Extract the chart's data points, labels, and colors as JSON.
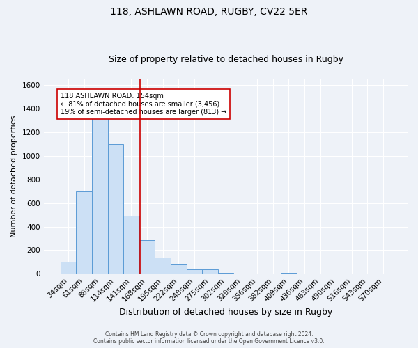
{
  "title1": "118, ASHLAWN ROAD, RUGBY, CV22 5ER",
  "title2": "Size of property relative to detached houses in Rugby",
  "xlabel": "Distribution of detached houses by size in Rugby",
  "ylabel": "Number of detached properties",
  "footer_line1": "Contains HM Land Registry data © Crown copyright and database right 2024.",
  "footer_line2": "Contains public sector information licensed under the Open Government Licence v3.0.",
  "categories": [
    "34sqm",
    "61sqm",
    "88sqm",
    "114sqm",
    "141sqm",
    "168sqm",
    "195sqm",
    "222sqm",
    "248sqm",
    "275sqm",
    "302sqm",
    "329sqm",
    "356sqm",
    "382sqm",
    "409sqm",
    "436sqm",
    "463sqm",
    "490sqm",
    "516sqm",
    "543sqm",
    "570sqm"
  ],
  "values": [
    100,
    700,
    1350,
    1100,
    490,
    285,
    140,
    80,
    35,
    35,
    10,
    0,
    0,
    0,
    10,
    0,
    0,
    0,
    0,
    0,
    0
  ],
  "bar_color": "#cce0f5",
  "bar_edge_color": "#5b9bd5",
  "red_line_x": 4.54,
  "red_line_color": "#cc0000",
  "annotation_box_text_line1": "118 ASHLAWN ROAD: 154sqm",
  "annotation_box_text_line2": "← 81% of detached houses are smaller (3,456)",
  "annotation_box_text_line3": "19% of semi-detached houses are larger (813) →",
  "annotation_box_color": "#ffffff",
  "annotation_box_edge_color": "#cc0000",
  "ylim": [
    0,
    1650
  ],
  "yticks": [
    0,
    200,
    400,
    600,
    800,
    1000,
    1200,
    1400,
    1600
  ],
  "bg_color": "#eef2f8",
  "plot_bg_color": "#eef2f8",
  "grid_color": "#ffffff",
  "title1_fontsize": 10,
  "title2_fontsize": 9,
  "xlabel_fontsize": 9,
  "ylabel_fontsize": 8,
  "tick_fontsize": 7.5,
  "footer_fontsize": 5.5,
  "annot_fontsize": 7
}
